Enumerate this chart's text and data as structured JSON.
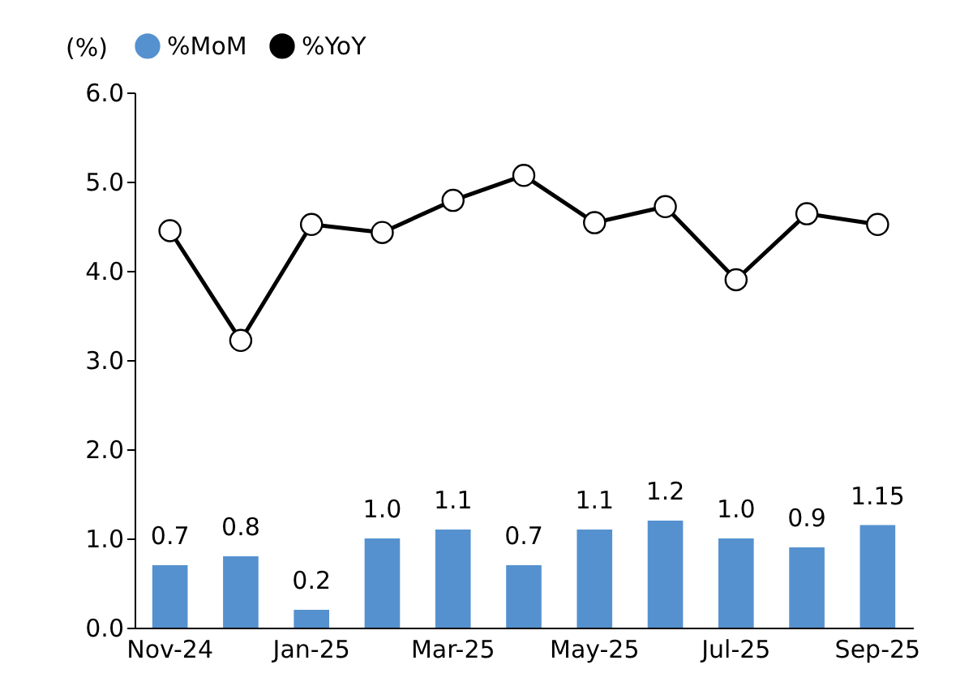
{
  "chart_data": {
    "type": "bar",
    "ylabel": "(%)",
    "categories": [
      "Nov-24",
      null,
      "Jan-25",
      null,
      "Mar-25",
      null,
      "May-25",
      null,
      "Jul-25",
      null,
      "Sep-25"
    ],
    "series": [
      {
        "name": "%MoM",
        "color": "#5591cf",
        "values": [
          0.7,
          0.8,
          0.2,
          1.0,
          1.1,
          0.7,
          1.1,
          1.2,
          1.0,
          0.9,
          1.15
        ],
        "value_labels": [
          "0.7",
          "0.8",
          "0.2",
          "1.0",
          "1.1",
          "0.7",
          "1.1",
          "1.2",
          "1.0",
          "0.9",
          "1.15"
        ]
      },
      {
        "name": "%YoY",
        "type": "line",
        "color": "#000000",
        "marker": "circle",
        "values": [
          4.45,
          3.22,
          4.52,
          4.43,
          4.79,
          5.07,
          4.54,
          4.72,
          3.9,
          4.64,
          4.52
        ]
      }
    ],
    "ylim": [
      0,
      6
    ],
    "yticks": [
      {
        "value": 0,
        "label": "0.0"
      },
      {
        "value": 1,
        "label": "1.0"
      },
      {
        "value": 2,
        "label": "2.0"
      },
      {
        "value": 3,
        "label": "3.0"
      },
      {
        "value": 4,
        "label": "4.0"
      },
      {
        "value": 5,
        "label": "5.0"
      },
      {
        "value": 6,
        "label": "6.0"
      }
    ],
    "grid": false,
    "legend": "top"
  }
}
